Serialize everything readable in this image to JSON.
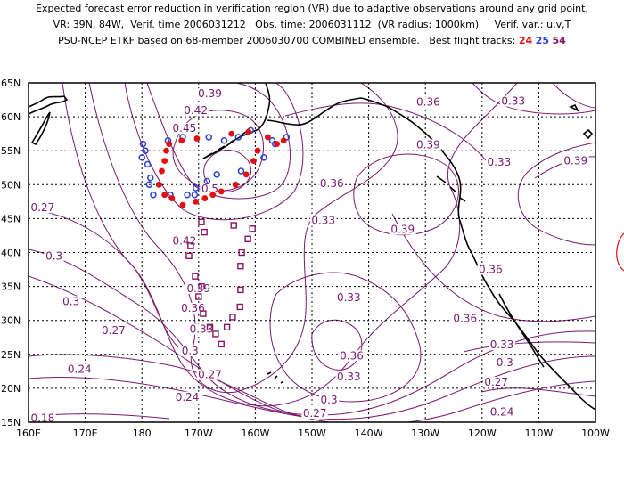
{
  "header": {
    "line1": "Expected forecast error reduction in verification region (VR) due to adaptive observations around any grid point.",
    "line2": "VR: 39N, 84W,  Verif. time 2006031212   Obs. time: 2006031112  (VR radius: 1000km)     Verif. var.: u,v,T",
    "line3_prefix": "PSU-NCEP ETKF based on 68-member 2006030700 COMBINED ensemble.   Best flight tracks:",
    "track_red": "24",
    "track_blue": "25",
    "track_magenta": "54"
  },
  "colors": {
    "contour": "#7a1a6e",
    "red_track": "#e01010",
    "blue_track": "#2b3fd8",
    "magenta_track": "#8a1462"
  },
  "axes": {
    "y_labels": [
      "65N",
      "60N",
      "55N",
      "50N",
      "45N",
      "40N",
      "35N",
      "30N",
      "25N",
      "20N",
      "15N"
    ],
    "x_labels": [
      "160E",
      "170E",
      "180",
      "170W",
      "160W",
      "150W",
      "140W",
      "130W",
      "120W",
      "110W",
      "100W"
    ]
  },
  "contour_labels": [
    {
      "text": "0.39",
      "lon": -168.0,
      "lat": 63.4
    },
    {
      "text": "0.42",
      "lon": -170.5,
      "lat": 60.9
    },
    {
      "text": "0.45",
      "lon": -172.5,
      "lat": 58.3
    },
    {
      "text": "0.5",
      "lon": -168.0,
      "lat": 49.4
    },
    {
      "text": "0.27",
      "lon": 162.5,
      "lat": 46.6
    },
    {
      "text": "0.3",
      "lon": 164.5,
      "lat": 39.5
    },
    {
      "text": "0.3",
      "lon": 167.5,
      "lat": 32.8
    },
    {
      "text": "0.27",
      "lon": 175.0,
      "lat": 28.5
    },
    {
      "text": "0.24",
      "lon": 169.0,
      "lat": 22.8
    },
    {
      "text": "0.18",
      "lon": 162.5,
      "lat": 15.6
    },
    {
      "text": "0.42",
      "lon": -172.5,
      "lat": 41.7
    },
    {
      "text": "0.39",
      "lon": -170.0,
      "lat": 34.7
    },
    {
      "text": "0.36",
      "lon": -171.0,
      "lat": 31.8
    },
    {
      "text": "0.33",
      "lon": -169.5,
      "lat": 28.7
    },
    {
      "text": "0.3",
      "lon": -171.5,
      "lat": 25.5
    },
    {
      "text": "0.27",
      "lon": -168.0,
      "lat": 22.0
    },
    {
      "text": "0.24",
      "lon": -172.0,
      "lat": 18.7
    },
    {
      "text": "0.36",
      "lon": -146.5,
      "lat": 50.2
    },
    {
      "text": "0.33",
      "lon": -148.0,
      "lat": 44.7
    },
    {
      "text": "0.33",
      "lon": -143.5,
      "lat": 33.4
    },
    {
      "text": "0.39",
      "lon": -134.0,
      "lat": 43.4
    },
    {
      "text": "0.36",
      "lon": -143.0,
      "lat": 24.8
    },
    {
      "text": "0.33",
      "lon": -143.5,
      "lat": 21.7
    },
    {
      "text": "0.3",
      "lon": -147.0,
      "lat": 18.3
    },
    {
      "text": "0.27",
      "lon": -149.5,
      "lat": 16.3
    },
    {
      "text": "0.36",
      "lon": -129.5,
      "lat": 62.2
    },
    {
      "text": "0.33",
      "lon": -114.5,
      "lat": 62.3
    },
    {
      "text": "0.39",
      "lon": -129.5,
      "lat": 55.9
    },
    {
      "text": "0.33",
      "lon": -117.0,
      "lat": 53.3
    },
    {
      "text": "0.39",
      "lon": -103.5,
      "lat": 53.5
    },
    {
      "text": "0.36",
      "lon": -118.5,
      "lat": 37.5
    },
    {
      "text": "0.36",
      "lon": -123.0,
      "lat": 30.3
    },
    {
      "text": "0.33",
      "lon": -116.5,
      "lat": 26.4
    },
    {
      "text": "0.3",
      "lon": -116.0,
      "lat": 23.8
    },
    {
      "text": "0.27",
      "lon": -117.5,
      "lat": 20.9
    },
    {
      "text": "0.24",
      "lon": -116.5,
      "lat": 16.5
    }
  ],
  "tracks": {
    "red": [
      [
        -177,
        50
      ],
      [
        -176.5,
        52
      ],
      [
        -176,
        53.5
      ],
      [
        -175.7,
        55
      ],
      [
        -175.2,
        56
      ],
      [
        -176,
        48.5
      ],
      [
        -174.7,
        48
      ],
      [
        -172.8,
        47
      ],
      [
        -170.5,
        47.5
      ],
      [
        -168.9,
        48
      ],
      [
        -167.5,
        48.5
      ],
      [
        -166,
        49
      ],
      [
        -163.5,
        50
      ],
      [
        -161.6,
        51.5
      ],
      [
        -160.3,
        53.5
      ],
      [
        -159.6,
        55
      ],
      [
        -157.8,
        57
      ],
      [
        -156.2,
        56
      ],
      [
        -155,
        56.5
      ],
      [
        -173,
        56.5
      ],
      [
        -164.2,
        57.5
      ],
      [
        -161.2,
        57.8
      ],
      [
        -170.3,
        56.8
      ]
    ],
    "blue": [
      [
        -179.8,
        56
      ],
      [
        -179.4,
        55
      ],
      [
        -180,
        54
      ],
      [
        -179,
        53
      ],
      [
        -178.5,
        51
      ],
      [
        -178.7,
        50
      ],
      [
        -178,
        48.5
      ],
      [
        -175,
        48.5
      ],
      [
        -172,
        48.5
      ],
      [
        -170.7,
        48.5
      ],
      [
        -170.5,
        49.5
      ],
      [
        -172.8,
        57
      ],
      [
        -175.4,
        56.5
      ],
      [
        -168.2,
        57
      ],
      [
        -165.5,
        56.5
      ],
      [
        -163,
        57
      ],
      [
        -160.8,
        58
      ],
      [
        -157,
        56.5
      ],
      [
        -154.5,
        57
      ],
      [
        -156.5,
        56
      ],
      [
        -158.5,
        54
      ],
      [
        -162.5,
        52
      ],
      [
        -168.5,
        50.5
      ],
      [
        -166.8,
        51.5
      ]
    ],
    "magenta": [
      [
        -169.5,
        44.5
      ],
      [
        -169,
        43
      ],
      [
        -171.4,
        41
      ],
      [
        -171.7,
        39.5
      ],
      [
        -170.6,
        36.5
      ],
      [
        -169.5,
        35
      ],
      [
        -170,
        33.5
      ],
      [
        -169.2,
        31
      ],
      [
        -168,
        29
      ],
      [
        -167,
        28
      ],
      [
        -166,
        26.5
      ],
      [
        -165,
        29
      ],
      [
        -164,
        30.5
      ],
      [
        -162.7,
        32
      ],
      [
        -162.6,
        34.5
      ],
      [
        -162.6,
        38
      ],
      [
        -162.4,
        40
      ],
      [
        -161.3,
        42
      ],
      [
        -160.5,
        43.5
      ],
      [
        -163.8,
        44
      ]
    ]
  }
}
